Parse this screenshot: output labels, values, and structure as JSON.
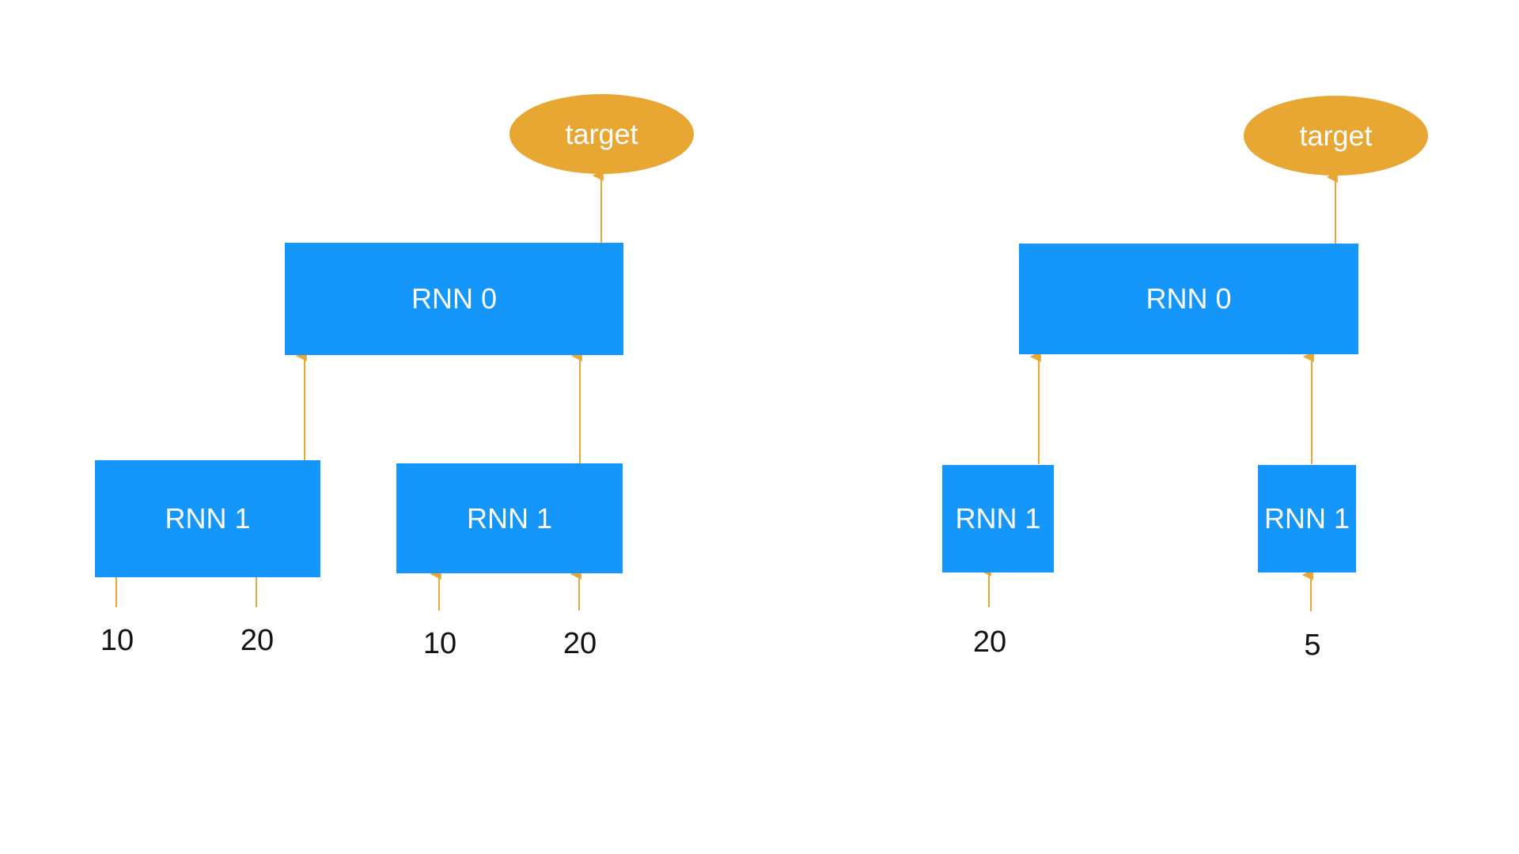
{
  "colors": {
    "box": "#1596fb",
    "target": "#e8a633",
    "arrow": "#e8a633",
    "text_on_shape": "#ffffff",
    "number_text": "#111111"
  },
  "left_tree": {
    "target_label": "target",
    "root_label": "RNN 0",
    "children": [
      {
        "label": "RNN 1",
        "inputs": [
          "10",
          "20"
        ]
      },
      {
        "label": "RNN 1",
        "inputs": [
          "10",
          "20"
        ]
      }
    ]
  },
  "right_tree": {
    "target_label": "target",
    "root_label": "RNN 0",
    "children": [
      {
        "label": "RNN 1",
        "inputs": [
          "20"
        ]
      },
      {
        "label": "RNN 1",
        "inputs": [
          "5"
        ]
      }
    ]
  }
}
